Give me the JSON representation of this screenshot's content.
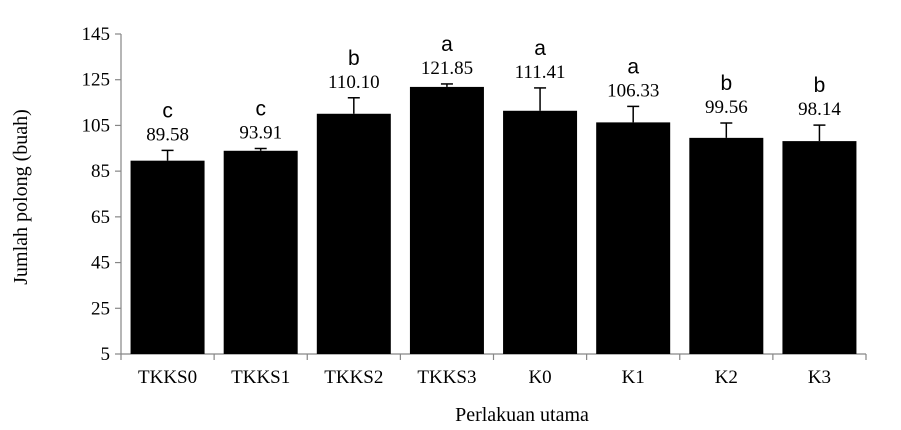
{
  "chart_data": {
    "type": "bar",
    "categories": [
      "TKKS0",
      "TKKS1",
      "TKKS2",
      "TKKS3",
      "K0",
      "K1",
      "K2",
      "K3"
    ],
    "values": [
      89.58,
      93.91,
      110.1,
      121.85,
      111.41,
      106.33,
      99.56,
      98.14
    ],
    "value_labels": [
      "89.58",
      "93.91",
      "110.10",
      "121.85",
      "111.41",
      "106.33",
      "99.56",
      "98.14"
    ],
    "error": [
      4.5,
      1.0,
      7.0,
      1.3,
      10.0,
      7.0,
      6.5,
      7.0
    ],
    "significance": [
      "c",
      "c",
      "b",
      "a",
      "a",
      "a",
      "b",
      "b"
    ],
    "xlabel": "Perlakuan utama",
    "ylabel": "Jumlah polong (buah)",
    "ylim": [
      5,
      145
    ],
    "yticks": [
      5,
      25,
      45,
      65,
      85,
      105,
      125,
      145
    ],
    "grid": false,
    "bar_color": "#000000"
  }
}
